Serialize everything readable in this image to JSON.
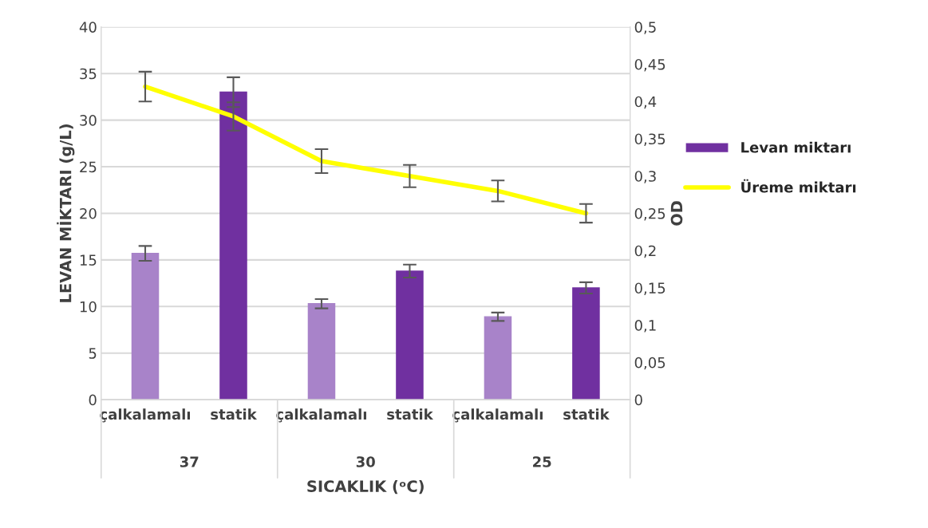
{
  "chart_data": {
    "type": "bar",
    "xlabel": "SICAKLIK (ᵒC)",
    "ylabel": "LEVAN MİKTARI (g/L)",
    "y2label": "OD",
    "categories": [
      "çalkalamalı",
      "statik",
      "çalkalamalı",
      "statik",
      "çalkalamalı",
      "statik"
    ],
    "annotations": [
      "37",
      "30",
      "25"
    ],
    "series": [
      {
        "name": "Levan miktarı",
        "color": "#7030a0",
        "colors": [
          "#a883c9",
          "#7030a0",
          "#a883c9",
          "#7030a0",
          "#a883c9",
          "#7030a0"
        ],
        "values": [
          15.7,
          33.0,
          10.3,
          13.8,
          8.9,
          12.0
        ],
        "errors": [
          0.8,
          1.6,
          0.5,
          0.7,
          0.45,
          0.6
        ]
      },
      {
        "name": "Üreme miktarı",
        "type": "line",
        "axis": "y2",
        "color": "#ffff00",
        "values": [
          0.42,
          0.38,
          0.32,
          0.3,
          0.28,
          0.25
        ],
        "errors": [
          0.02,
          0.019,
          0.016,
          0.015,
          0.014,
          0.0125
        ]
      }
    ],
    "ylim": [
      0,
      40
    ],
    "yticks": [
      0,
      5,
      10,
      15,
      20,
      25,
      30,
      35,
      40
    ],
    "y2lim": [
      0,
      0.5
    ],
    "y2ticks": [
      0,
      {
        "value": 0.05,
        "label": "0,05"
      },
      {
        "value": 0.1,
        "label": "0,1"
      },
      {
        "value": 0.15,
        "label": "0,15"
      },
      {
        "value": 0.2,
        "label": "0,2"
      },
      {
        "value": 0.25,
        "label": "0,25"
      },
      {
        "value": 0.3,
        "label": "0,3"
      },
      {
        "value": 0.35,
        "label": "0,35"
      },
      {
        "value": 0.4,
        "label": "0,4"
      },
      {
        "value": 0.45,
        "label": "0,45"
      },
      {
        "value": 0.5,
        "label": "0,5"
      }
    ],
    "grid": "y",
    "legend": "right",
    "marker": "none",
    "line_style": "solid"
  }
}
